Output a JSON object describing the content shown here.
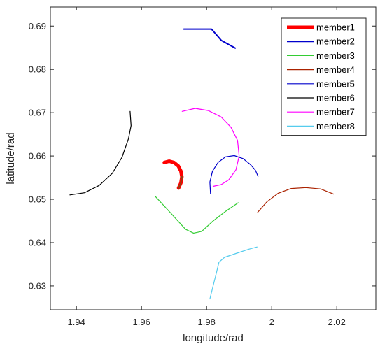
{
  "chart_data": {
    "type": "line",
    "xlabel": "longitude/rad",
    "ylabel": "latitude/rad",
    "xlim": [
      1.932,
      2.032
    ],
    "ylim": [
      0.6245,
      0.6944
    ],
    "xticks": [
      1.94,
      1.96,
      1.98,
      2.0,
      2.02
    ],
    "xtick_labels": [
      "1.94",
      "1.96",
      "1.98",
      "2",
      "2.02"
    ],
    "yticks": [
      0.63,
      0.64,
      0.65,
      0.66,
      0.67,
      0.68,
      0.69
    ],
    "ytick_labels": [
      "0.63",
      "0.64",
      "0.65",
      "0.66",
      "0.67",
      "0.68",
      "0.69"
    ],
    "grid": false,
    "legend_position": "top-right",
    "series": [
      {
        "name": "member1",
        "color": "#ff0000",
        "width": 5,
        "points": [
          [
            1.967,
            0.6585
          ],
          [
            1.9685,
            0.6588
          ],
          [
            1.97,
            0.6585
          ],
          [
            1.9713,
            0.6577
          ],
          [
            1.9721,
            0.6565
          ],
          [
            1.9724,
            0.6552
          ],
          [
            1.9721,
            0.6538
          ],
          [
            1.9714,
            0.6526
          ]
        ],
        "overlay": {
          "color": "#8b4513",
          "width": 2,
          "points": [
            [
              1.9724,
              0.6552
            ],
            [
              1.9721,
              0.6538
            ],
            [
              1.9714,
              0.6526
            ]
          ]
        }
      },
      {
        "name": "member2",
        "color": "#0000cc",
        "width": 2,
        "points": [
          [
            1.973,
            0.6893
          ],
          [
            1.9765,
            0.6893
          ],
          [
            1.9815,
            0.6893
          ],
          [
            1.983,
            0.688
          ],
          [
            1.9845,
            0.6867
          ],
          [
            1.9888,
            0.6849
          ]
        ]
      },
      {
        "name": "member3",
        "color": "#33cc33",
        "width": 1.2,
        "points": [
          [
            1.9642,
            0.6507
          ],
          [
            1.969,
            0.6468
          ],
          [
            1.9735,
            0.6431
          ],
          [
            1.976,
            0.6422
          ],
          [
            1.9785,
            0.6426
          ],
          [
            1.982,
            0.645
          ],
          [
            1.9858,
            0.6472
          ],
          [
            1.9897,
            0.6492
          ]
        ]
      },
      {
        "name": "member4",
        "color": "#aa2200",
        "width": 1.2,
        "points": [
          [
            1.9957,
            0.647
          ],
          [
            1.9985,
            0.6494
          ],
          [
            2.002,
            0.6514
          ],
          [
            2.006,
            0.6525
          ],
          [
            2.0105,
            0.6527
          ],
          [
            2.015,
            0.6524
          ],
          [
            2.019,
            0.6512
          ]
        ]
      },
      {
        "name": "member5",
        "color": "#0000cc",
        "width": 1.2,
        "points": [
          [
            1.9812,
            0.6513
          ],
          [
            1.981,
            0.654
          ],
          [
            1.9818,
            0.6565
          ],
          [
            1.9835,
            0.6585
          ],
          [
            1.9858,
            0.6598
          ],
          [
            1.9885,
            0.6601
          ],
          [
            1.9912,
            0.6594
          ],
          [
            1.9935,
            0.658
          ],
          [
            1.995,
            0.6567
          ],
          [
            1.9958,
            0.6553
          ]
        ]
      },
      {
        "name": "member6",
        "color": "#000000",
        "width": 1.2,
        "points": [
          [
            1.938,
            0.651
          ],
          [
            1.9425,
            0.6515
          ],
          [
            1.947,
            0.6532
          ],
          [
            1.951,
            0.656
          ],
          [
            1.954,
            0.6597
          ],
          [
            1.956,
            0.664
          ],
          [
            1.9568,
            0.667
          ],
          [
            1.9565,
            0.6703
          ]
        ]
      },
      {
        "name": "member7",
        "color": "#ff00ff",
        "width": 1.2,
        "points": [
          [
            1.9725,
            0.6703
          ],
          [
            1.9765,
            0.671
          ],
          [
            1.9805,
            0.6705
          ],
          [
            1.9845,
            0.669
          ],
          [
            1.9875,
            0.6666
          ],
          [
            1.9895,
            0.6636
          ],
          [
            1.99,
            0.66
          ],
          [
            1.989,
            0.6568
          ],
          [
            1.9868,
            0.6545
          ],
          [
            1.9845,
            0.6534
          ],
          [
            1.982,
            0.653
          ]
        ]
      },
      {
        "name": "member8",
        "color": "#55ccee",
        "width": 1.2,
        "points": [
          [
            1.981,
            0.627
          ],
          [
            1.982,
            0.63
          ],
          [
            1.983,
            0.633
          ],
          [
            1.9838,
            0.6355
          ],
          [
            1.9855,
            0.6366
          ],
          [
            1.989,
            0.6375
          ],
          [
            1.993,
            0.6385
          ],
          [
            1.9955,
            0.639
          ]
        ]
      }
    ]
  }
}
